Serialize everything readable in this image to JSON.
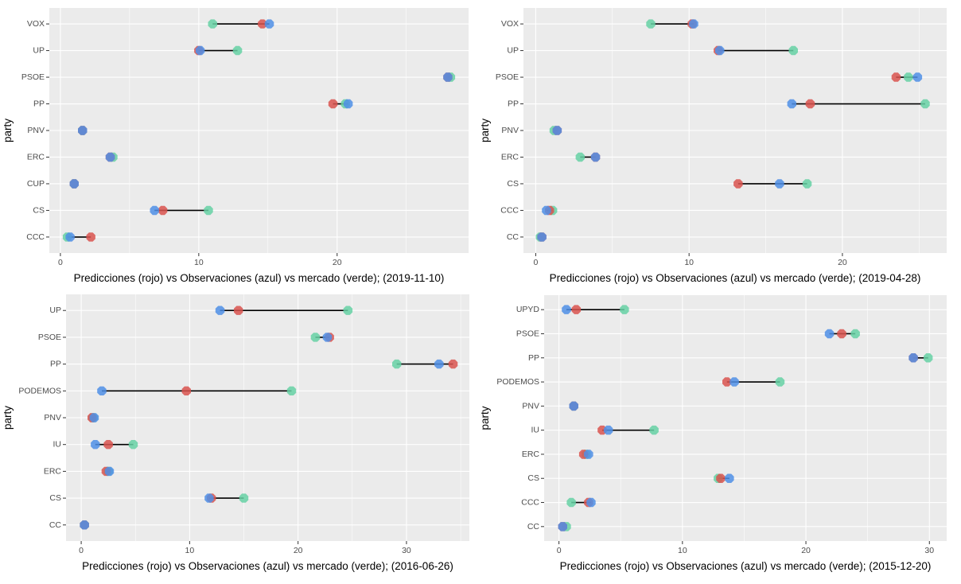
{
  "colors": {
    "pred": "#d9534f",
    "obs": "#4f8fe6",
    "mkt": "#66d1a5",
    "panel_bg": "#ebebeb"
  },
  "chart_data": [
    {
      "type": "dumbbell",
      "title": "",
      "xlabel": "Predicciones (rojo) vs  Observaciones (azul) vs mercado (verde); (2019-11-10)",
      "ylabel": "party",
      "xlim": [
        -0.8,
        29.5
      ],
      "xticks": [
        0,
        10,
        20
      ],
      "grid": true,
      "series_names": {
        "pred": "Predicciones (rojo)",
        "obs": "Observaciones (azul)",
        "mkt": "mercado (verde)"
      },
      "categories": [
        "VOX",
        "UP",
        "PSOE",
        "PP",
        "PNV",
        "ERC",
        "CUP",
        "CS",
        "CCC"
      ],
      "series": [
        {
          "name": "pred",
          "values": [
            14.6,
            10.0,
            28.0,
            19.7,
            1.6,
            3.6,
            1.0,
            7.4,
            2.2
          ]
        },
        {
          "name": "obs",
          "values": [
            15.1,
            10.1,
            28.0,
            20.8,
            1.6,
            3.6,
            1.0,
            6.8,
            0.7
          ]
        },
        {
          "name": "mkt",
          "values": [
            11.0,
            12.8,
            28.2,
            20.6,
            1.6,
            3.8,
            1.0,
            10.7,
            0.5
          ]
        }
      ]
    },
    {
      "type": "dumbbell",
      "title": "",
      "xlabel": "Predicciones (rojo) vs  Observaciones (azul) vs mercado (verde); (2019-04-28)",
      "ylabel": "party",
      "xlim": [
        -0.8,
        26.8
      ],
      "xticks": [
        0,
        10,
        20
      ],
      "grid": true,
      "series_names": {
        "pred": "Predicciones (rojo)",
        "obs": "Observaciones (azul)",
        "mkt": "mercado (verde)"
      },
      "categories": [
        "VOX",
        "UP",
        "PSOE",
        "PP",
        "PNV",
        "ERC",
        "CS",
        "CCC",
        "CC"
      ],
      "series": [
        {
          "name": "pred",
          "values": [
            10.2,
            11.9,
            23.5,
            17.9,
            1.4,
            3.9,
            13.2,
            0.9,
            0.4
          ]
        },
        {
          "name": "obs",
          "values": [
            10.3,
            12.0,
            24.9,
            16.7,
            1.4,
            3.9,
            15.9,
            0.7,
            0.4
          ]
        },
        {
          "name": "mkt",
          "values": [
            7.5,
            16.8,
            24.3,
            25.4,
            1.2,
            2.9,
            17.7,
            1.1,
            0.3
          ]
        }
      ]
    },
    {
      "type": "dumbbell",
      "title": "",
      "xlabel": "Predicciones (rojo) vs  Observaciones (azul) vs mercado (verde); (2016-06-26)",
      "ylabel": "party",
      "xlim": [
        -1.4,
        35.8
      ],
      "xticks": [
        0,
        10,
        20,
        30
      ],
      "grid": true,
      "series_names": {
        "pred": "Predicciones (rojo)",
        "obs": "Observaciones (azul)",
        "mkt": "mercado (verde)"
      },
      "categories": [
        "UP",
        "PSOE",
        "PP",
        "PODEMOS",
        "PNV",
        "IU",
        "ERC",
        "CS",
        "CC"
      ],
      "series": [
        {
          "name": "pred",
          "values": [
            14.5,
            22.9,
            34.3,
            9.7,
            1.0,
            2.5,
            2.3,
            12.0,
            0.3
          ]
        },
        {
          "name": "obs",
          "values": [
            12.8,
            22.7,
            33.0,
            1.9,
            1.2,
            1.3,
            2.6,
            11.8,
            0.3
          ]
        },
        {
          "name": "mkt",
          "values": [
            24.6,
            21.6,
            29.1,
            19.4,
            1.1,
            4.8,
            2.5,
            15.0,
            0.3
          ]
        }
      ]
    },
    {
      "type": "dumbbell",
      "title": "",
      "xlabel": "Predicciones (rojo) vs  Observaciones (azul) vs mercado (verde); (2015-12-20)",
      "ylabel": "party",
      "xlim": [
        -1.2,
        31.4
      ],
      "xticks": [
        0,
        10,
        20,
        30
      ],
      "grid": true,
      "series_names": {
        "pred": "Predicciones (rojo)",
        "obs": "Observaciones (azul)",
        "mkt": "mercado (verde)"
      },
      "categories": [
        "UPYD",
        "PSOE",
        "PP",
        "PODEMOS",
        "PNV",
        "IU",
        "ERC",
        "CS",
        "CCC",
        "CC"
      ],
      "series": [
        {
          "name": "pred",
          "values": [
            1.4,
            22.9,
            28.7,
            13.6,
            1.2,
            3.5,
            2.0,
            13.1,
            2.4,
            0.3
          ]
        },
        {
          "name": "obs",
          "values": [
            0.6,
            21.9,
            28.7,
            14.2,
            1.2,
            4.0,
            2.4,
            13.8,
            2.6,
            0.3
          ]
        },
        {
          "name": "mkt",
          "values": [
            5.3,
            24.0,
            29.9,
            17.9,
            1.2,
            7.7,
            2.2,
            12.9,
            1.0,
            0.6
          ]
        }
      ]
    }
  ]
}
